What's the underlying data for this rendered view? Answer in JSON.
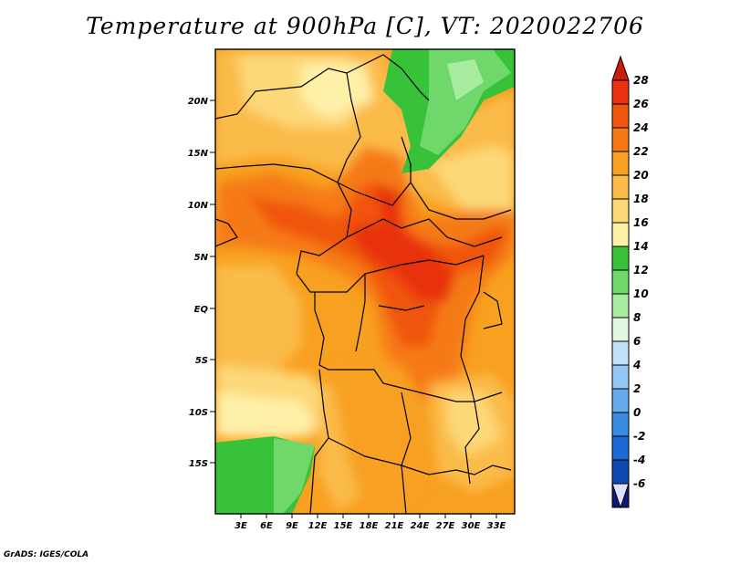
{
  "title": "Temperature at 900hPa [C], VT: 2020022706",
  "credit": "GrADS: IGES/COLA",
  "map": {
    "lat_labels": [
      "20N",
      "15N",
      "10N",
      "5N",
      "EQ",
      "5S",
      "10S",
      "15S"
    ],
    "lon_labels": [
      "3E",
      "6E",
      "9E",
      "12E",
      "15E",
      "18E",
      "21E",
      "24E",
      "27E",
      "30E",
      "33E"
    ]
  },
  "colorbar": {
    "labels": [
      "28",
      "26",
      "24",
      "22",
      "20",
      "18",
      "16",
      "14",
      "12",
      "10",
      "8",
      "6",
      "4",
      "2",
      "0",
      "-2",
      "-4",
      "-6"
    ],
    "colors": [
      "#e8320f",
      "#f05510",
      "#f57a15",
      "#f8a020",
      "#fabb48",
      "#fdd878",
      "#fff0a8",
      "#38c23a",
      "#70d86a",
      "#a8eca0",
      "#dff8df",
      "#c0e0fa",
      "#94c8f4",
      "#64aaee",
      "#3a8ae0",
      "#1e6ad4",
      "#0f4ab0",
      "#0a1a78"
    ],
    "top_color": "#c81e0a",
    "bottom_color": "#dde0ff"
  },
  "colors": {
    "land_orange": "#f8a020",
    "green": "#38c23a"
  }
}
